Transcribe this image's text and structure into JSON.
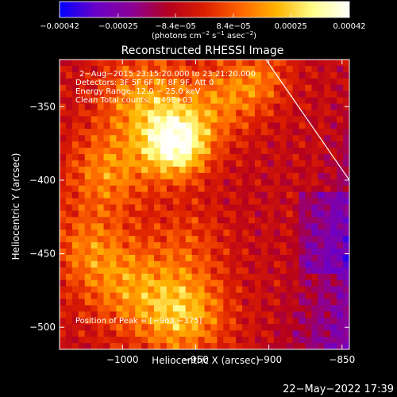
{
  "chart_data": {
    "type": "heatmap",
    "title": "Reconstructed RHESSI Image",
    "xlabel": "Heliocentric X (arcsec)",
    "ylabel": "Heliocentric Y (arcsec)",
    "xlim": [
      -1043,
      -845
    ],
    "ylim": [
      -515,
      -318
    ],
    "x_ticks": [
      -1000,
      -950,
      -900,
      -850
    ],
    "x_tick_labels": [
      "−1000",
      "−950",
      "−900",
      "−850"
    ],
    "y_ticks": [
      -350,
      -400,
      -450,
      -500
    ],
    "y_tick_labels": [
      "−350",
      "−400",
      "−450",
      "−500"
    ],
    "colorbar": {
      "range": [
        -0.00042,
        0.00042
      ],
      "ticks": [
        -0.00042,
        -0.00025,
        -8.4e-05,
        8.4e-05,
        0.00025,
        0.00042
      ],
      "tick_labels": [
        "−0.00042",
        "−0.00025",
        "−8.4e−05",
        "8.4e−05",
        "0.00025",
        "0.00042"
      ],
      "units_prefix": "(photons cm",
      "units_exp1": "−2",
      "units_mid": " s",
      "units_exp2": "−1",
      "units_mid2": " asec",
      "units_exp3": "−2",
      "units_suffix": ")",
      "colors": [
        "#0000ff",
        "#6a00c8",
        "#8c0096",
        "#b4001e",
        "#dc1e00",
        "#ff6400",
        "#ffb400",
        "#ffff8c",
        "#ffffff"
      ]
    },
    "annotations": [
      "2−Aug−2015 23:15:20.000 to 23:21:20.000",
      "Detectors: 3F 5F 6F 7F 8F 9F, Att 0",
      "Energy Range: 12.0 − 25.0 keV",
      "Clean     Total counts: 8.49E+03"
    ],
    "peak_label": "Position of Peak = [−963,−375]",
    "peak": [
      -963,
      -375
    ],
    "limb_line": [
      [
        -902,
        -318
      ],
      [
        -845,
        -400
      ]
    ],
    "grid": false
  },
  "footer": {
    "timestamp": "22−May−2022 17:39"
  }
}
